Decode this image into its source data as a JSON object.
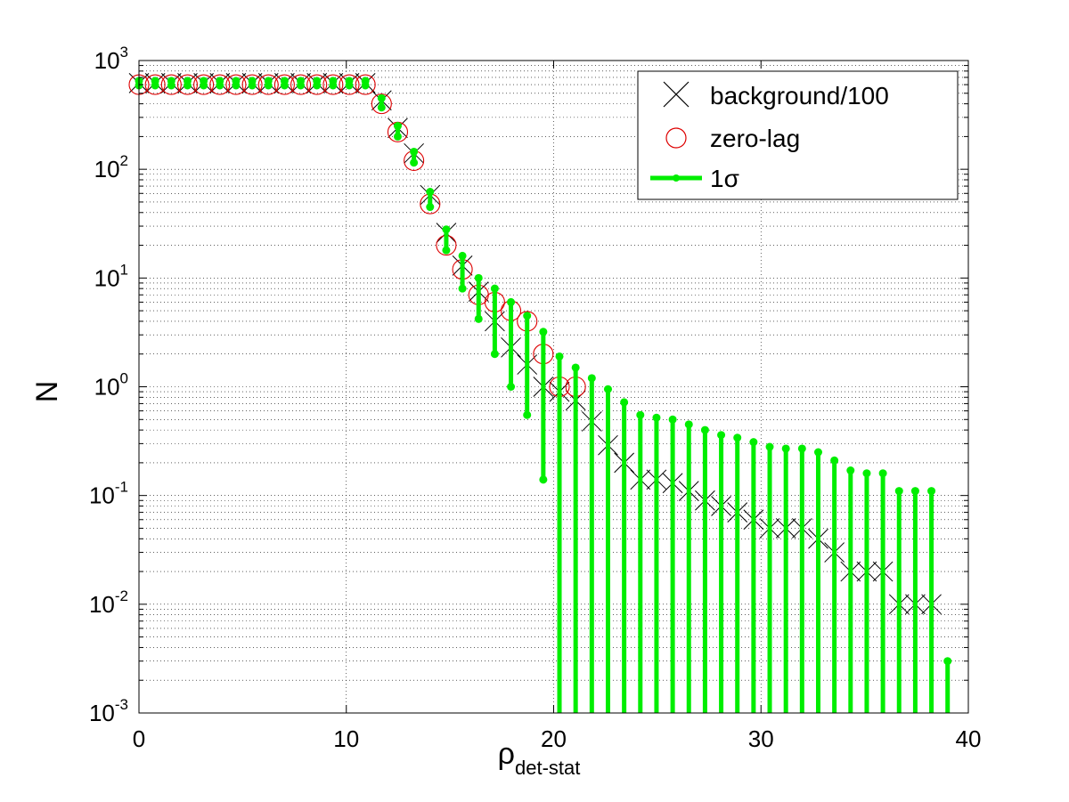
{
  "chart_data": {
    "type": "scatter",
    "title": "",
    "xlabel": "ρ",
    "xlabel_sub": "det-stat",
    "ylabel": "N",
    "xlim": [
      0,
      40
    ],
    "ylim": [
      0.001,
      1000
    ],
    "yscale": "log",
    "grid": true,
    "legend_position": "top-right",
    "x_ticks": [
      {
        "value": 0,
        "label": "0"
      },
      {
        "value": 10,
        "label": "10"
      },
      {
        "value": 20,
        "label": "20"
      },
      {
        "value": 30,
        "label": "30"
      },
      {
        "value": 40,
        "label": "40"
      }
    ],
    "y_ticks": [
      {
        "value": 0.001,
        "base": "10",
        "exp": "-3"
      },
      {
        "value": 0.01,
        "base": "10",
        "exp": "-2"
      },
      {
        "value": 0.1,
        "base": "10",
        "exp": "-1"
      },
      {
        "value": 1,
        "base": "10",
        "exp": "0"
      },
      {
        "value": 10,
        "base": "10",
        "exp": "1"
      },
      {
        "value": 100,
        "base": "10",
        "exp": "2"
      },
      {
        "value": 1000,
        "base": "10",
        "exp": "3"
      }
    ],
    "colors": {
      "background": "#000000",
      "zero_lag": "#dd0000",
      "sigma": "#00ee00"
    },
    "series": [
      {
        "name": "background/100",
        "marker": "x",
        "x": [
          0,
          0.78,
          1.56,
          2.34,
          3.12,
          3.9,
          4.68,
          5.46,
          6.24,
          7.02,
          7.8,
          8.58,
          9.36,
          10.14,
          10.92,
          11.7,
          12.48,
          13.26,
          14.04,
          14.82,
          15.6,
          16.38,
          17.16,
          17.94,
          18.72,
          19.5,
          20.28,
          21.06,
          21.84,
          22.62,
          23.4,
          24.18,
          24.96,
          25.74,
          26.52,
          27.3,
          28.08,
          28.86,
          29.64,
          30.42,
          31.2,
          31.98,
          32.76,
          33.54,
          34.32,
          35.1,
          35.88,
          36.66,
          37.44,
          38.22
        ],
        "y": [
          620,
          620,
          620,
          620,
          620,
          620,
          620,
          620,
          620,
          620,
          620,
          620,
          620,
          620,
          620,
          430,
          240,
          140,
          58,
          26,
          13,
          7.5,
          4,
          2.3,
          1.6,
          1.0,
          0.9,
          0.75,
          0.48,
          0.29,
          0.2,
          0.14,
          0.14,
          0.13,
          0.11,
          0.09,
          0.08,
          0.07,
          0.06,
          0.05,
          0.05,
          0.05,
          0.04,
          0.03,
          0.02,
          0.02,
          0.02,
          0.01,
          0.01,
          0.01
        ]
      },
      {
        "name": "zero-lag",
        "marker": "o",
        "x": [
          0,
          0.78,
          1.56,
          2.34,
          3.12,
          3.9,
          4.68,
          5.46,
          6.24,
          7.02,
          7.8,
          8.58,
          9.36,
          10.14,
          10.92,
          11.7,
          12.48,
          13.26,
          14.04,
          14.82,
          15.6,
          16.38,
          17.16,
          17.94,
          18.72,
          19.5,
          20.28,
          21.06
        ],
        "y": [
          600,
          600,
          600,
          600,
          600,
          600,
          600,
          600,
          600,
          600,
          600,
          600,
          600,
          600,
          600,
          400,
          220,
          120,
          48,
          20,
          12,
          7,
          6,
          5,
          4,
          2,
          1,
          1
        ]
      },
      {
        "name": "1σ",
        "marker": "errorbar",
        "x": [
          0,
          0.78,
          1.56,
          2.34,
          3.12,
          3.9,
          4.68,
          5.46,
          6.24,
          7.02,
          7.8,
          8.58,
          9.36,
          10.14,
          10.92,
          11.7,
          12.48,
          13.26,
          14.04,
          14.82,
          15.6,
          16.38,
          17.16,
          17.94,
          18.72,
          19.5,
          20.28,
          21.06,
          21.84,
          22.62,
          23.4,
          24.18,
          24.96,
          25.74,
          26.52,
          27.3,
          28.08,
          28.86,
          29.64,
          30.42,
          31.2,
          31.98,
          32.76,
          33.54,
          34.32,
          35.1,
          35.88,
          36.66,
          37.44,
          38.22,
          39.0
        ],
        "upper": [
          650,
          650,
          650,
          650,
          650,
          650,
          650,
          650,
          650,
          650,
          650,
          650,
          650,
          650,
          650,
          450,
          250,
          145,
          62,
          28,
          16,
          10,
          8,
          6,
          4.5,
          3.2,
          1.9,
          1.5,
          1.2,
          0.95,
          0.72,
          0.55,
          0.52,
          0.5,
          0.45,
          0.4,
          0.36,
          0.34,
          0.31,
          0.28,
          0.27,
          0.27,
          0.25,
          0.21,
          0.17,
          0.16,
          0.16,
          0.11,
          0.11,
          0.11,
          0.003
        ],
        "lower": [
          590,
          590,
          590,
          590,
          590,
          590,
          590,
          590,
          590,
          590,
          590,
          590,
          590,
          590,
          590,
          370,
          200,
          115,
          45,
          18,
          8,
          4.2,
          2,
          1.0,
          0.55,
          0.14,
          0.001,
          0.001,
          0.001,
          0.001,
          0.001,
          0.001,
          0.001,
          0.001,
          0.001,
          0.001,
          0.001,
          0.001,
          0.001,
          0.001,
          0.001,
          0.001,
          0.001,
          0.001,
          0.001,
          0.001,
          0.001,
          0.001,
          0.001,
          0.001,
          0.001
        ]
      }
    ]
  }
}
